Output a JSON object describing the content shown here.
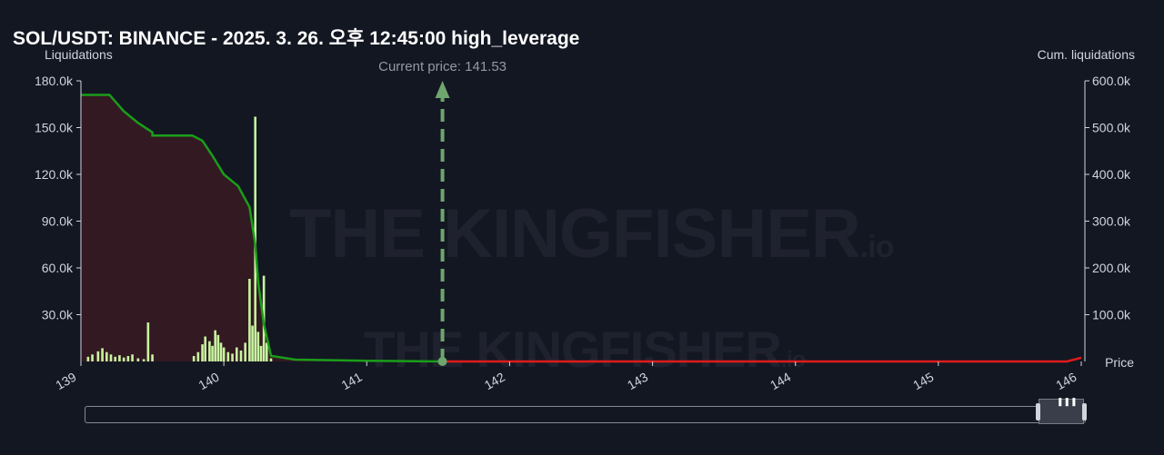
{
  "chart_data": {
    "type": "bar",
    "title": "SOL/USDT: BINANCE - 2025. 3. 26. 오후 12:45:00 high_leverage",
    "xlabel": "Price",
    "ylabel_left": "Liquidations",
    "ylabel_right": "Cum. liquidations",
    "xlim": [
      139,
      146
    ],
    "ylim_left": [
      0,
      180000
    ],
    "ylim_right": [
      0,
      600000
    ],
    "x_ticks": [
      "139",
      "140",
      "141",
      "142",
      "143",
      "144",
      "145",
      "146"
    ],
    "y_ticks_left": [
      "30.0k",
      "60.0k",
      "90.0k",
      "120.0k",
      "150.0k",
      "180.0k"
    ],
    "y_ticks_right": [
      "100.0k",
      "200.0k",
      "300.0k",
      "400.0k",
      "500.0k",
      "600.0k"
    ],
    "current_price": 141.53,
    "current_price_label": "Current price: 141.53",
    "bars": [
      {
        "x": 139.05,
        "y": 3000
      },
      {
        "x": 139.08,
        "y": 4500
      },
      {
        "x": 139.12,
        "y": 6500
      },
      {
        "x": 139.15,
        "y": 8500
      },
      {
        "x": 139.18,
        "y": 6000
      },
      {
        "x": 139.21,
        "y": 4500
      },
      {
        "x": 139.24,
        "y": 3000
      },
      {
        "x": 139.27,
        "y": 4000
      },
      {
        "x": 139.3,
        "y": 2500
      },
      {
        "x": 139.33,
        "y": 3500
      },
      {
        "x": 139.36,
        "y": 4500
      },
      {
        "x": 139.4,
        "y": 2000
      },
      {
        "x": 139.44,
        "y": 1500
      },
      {
        "x": 139.47,
        "y": 25000
      },
      {
        "x": 139.5,
        "y": 4500
      },
      {
        "x": 139.79,
        "y": 3500
      },
      {
        "x": 139.82,
        "y": 6000
      },
      {
        "x": 139.85,
        "y": 11000
      },
      {
        "x": 139.87,
        "y": 16000
      },
      {
        "x": 139.9,
        "y": 13000
      },
      {
        "x": 139.92,
        "y": 10000
      },
      {
        "x": 139.94,
        "y": 20000
      },
      {
        "x": 139.96,
        "y": 17000
      },
      {
        "x": 139.98,
        "y": 12000
      },
      {
        "x": 140.0,
        "y": 9000
      },
      {
        "x": 140.03,
        "y": 6000
      },
      {
        "x": 140.06,
        "y": 5000
      },
      {
        "x": 140.09,
        "y": 9000
      },
      {
        "x": 140.12,
        "y": 7000
      },
      {
        "x": 140.15,
        "y": 12000
      },
      {
        "x": 140.18,
        "y": 53000
      },
      {
        "x": 140.2,
        "y": 23000
      },
      {
        "x": 140.22,
        "y": 157000
      },
      {
        "x": 140.24,
        "y": 19000
      },
      {
        "x": 140.26,
        "y": 10000
      },
      {
        "x": 140.28,
        "y": 55000
      },
      {
        "x": 140.3,
        "y": 12000
      },
      {
        "x": 140.33,
        "y": 2000
      }
    ],
    "cumulative": [
      {
        "x": 139.0,
        "y": 570000
      },
      {
        "x": 139.2,
        "y": 570000
      },
      {
        "x": 139.3,
        "y": 535000
      },
      {
        "x": 139.4,
        "y": 510000
      },
      {
        "x": 139.5,
        "y": 490000
      },
      {
        "x": 139.5,
        "y": 483000
      },
      {
        "x": 139.78,
        "y": 483000
      },
      {
        "x": 139.85,
        "y": 472000
      },
      {
        "x": 139.92,
        "y": 440000
      },
      {
        "x": 140.0,
        "y": 400000
      },
      {
        "x": 140.1,
        "y": 375000
      },
      {
        "x": 140.18,
        "y": 330000
      },
      {
        "x": 140.22,
        "y": 250000
      },
      {
        "x": 140.24,
        "y": 170000
      },
      {
        "x": 140.28,
        "y": 80000
      },
      {
        "x": 140.33,
        "y": 12000
      },
      {
        "x": 140.5,
        "y": 4000
      },
      {
        "x": 141.0,
        "y": 1500
      },
      {
        "x": 141.53,
        "y": 0
      }
    ],
    "short_line": [
      {
        "x": 141.53,
        "y": 0
      },
      {
        "x": 145.9,
        "y": 0
      },
      {
        "x": 145.95,
        "y": 4000
      },
      {
        "x": 146.0,
        "y": 8000
      }
    ],
    "colors": {
      "background": "#131722",
      "bars": "#c8f5a0",
      "cumulative_line": "#1a9e1a",
      "cumulative_fill": "#3a1a22",
      "current_price_line": "#6fa56f",
      "short_line": "#e01b1b",
      "axis": "#d1d4dc",
      "grid": "none"
    },
    "grid": false
  },
  "watermark": {
    "brand": "THE KINGFISHER",
    "suffix": ".io"
  }
}
